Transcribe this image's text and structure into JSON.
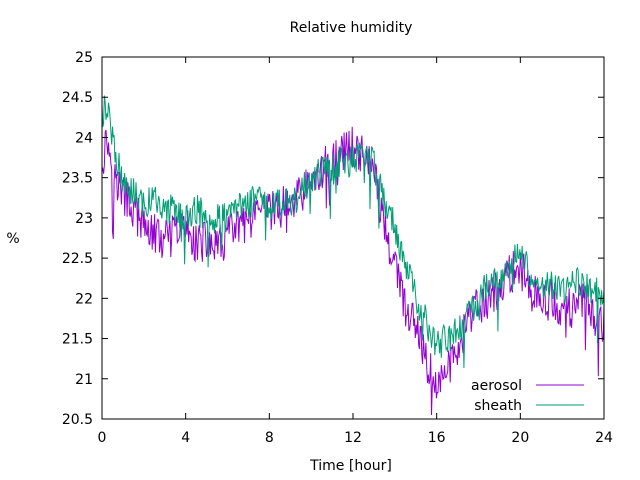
{
  "chart_data": {
    "type": "line",
    "title": "Relative humidity",
    "xlabel": "Time [hour]",
    "ylabel": "%",
    "xlim": [
      0,
      24
    ],
    "ylim": [
      20.5,
      25
    ],
    "x_ticks": [
      0,
      4,
      8,
      12,
      16,
      20,
      24
    ],
    "y_ticks": [
      20.5,
      21,
      21.5,
      22,
      22.5,
      23,
      23.5,
      24,
      24.5,
      25
    ],
    "grid": false,
    "legend_position": "bottom-right",
    "series": [
      {
        "name": "aerosol",
        "color": "#9400d3",
        "x": [
          0,
          0.25,
          0.5,
          0.75,
          1,
          1.5,
          2,
          2.5,
          3,
          3.5,
          4,
          4.5,
          5,
          5.5,
          6,
          6.5,
          7,
          7.5,
          8,
          8.5,
          9,
          9.5,
          10,
          10.5,
          11,
          11.5,
          12,
          12.5,
          13,
          13.25,
          13.5,
          14,
          14.5,
          15,
          15.5,
          16,
          16.5,
          17,
          17.5,
          18,
          18.5,
          19,
          19.5,
          20,
          20.5,
          21,
          21.5,
          22,
          22.5,
          23,
          23.5,
          24
        ],
        "y": [
          23.7,
          24.0,
          23.6,
          23.4,
          23.3,
          23.1,
          22.9,
          22.8,
          22.7,
          22.8,
          22.9,
          22.7,
          22.7,
          22.6,
          22.8,
          22.9,
          22.9,
          23.0,
          23.1,
          23.1,
          23.2,
          23.3,
          23.4,
          23.6,
          23.7,
          23.8,
          23.9,
          23.8,
          23.6,
          23.2,
          22.9,
          22.4,
          21.9,
          21.6,
          21.2,
          20.9,
          21.1,
          21.4,
          21.7,
          21.9,
          22.0,
          22.1,
          22.3,
          22.4,
          22.1,
          21.9,
          22.0,
          21.8,
          21.9,
          22.0,
          21.8,
          21.7
        ]
      },
      {
        "name": "sheath",
        "color": "#009e73",
        "x": [
          0,
          0.25,
          0.5,
          0.75,
          1,
          1.5,
          2,
          2.5,
          3,
          3.5,
          4,
          4.5,
          5,
          5.5,
          6,
          6.5,
          7,
          7.5,
          8,
          8.5,
          9,
          9.5,
          10,
          10.5,
          11,
          11.5,
          12,
          12.5,
          13,
          13.25,
          13.5,
          14,
          14.5,
          15,
          15.5,
          16,
          16.5,
          17,
          17.5,
          18,
          18.5,
          19,
          19.5,
          20,
          20.5,
          21,
          21.5,
          22,
          22.5,
          23,
          23.5,
          24
        ],
        "y": [
          24.3,
          24.4,
          24.0,
          23.7,
          23.5,
          23.3,
          23.2,
          23.2,
          23.1,
          23.1,
          23.0,
          23.1,
          23.0,
          23.0,
          23.0,
          23.1,
          23.2,
          23.2,
          23.1,
          23.2,
          23.2,
          23.3,
          23.5,
          23.6,
          23.6,
          23.7,
          23.7,
          23.8,
          23.7,
          23.4,
          23.2,
          22.9,
          22.4,
          22.0,
          21.7,
          21.4,
          21.5,
          21.6,
          21.8,
          22.0,
          22.2,
          22.2,
          22.4,
          22.6,
          22.3,
          22.1,
          22.2,
          22.1,
          22.2,
          22.2,
          22.1,
          22.0
        ]
      }
    ]
  }
}
